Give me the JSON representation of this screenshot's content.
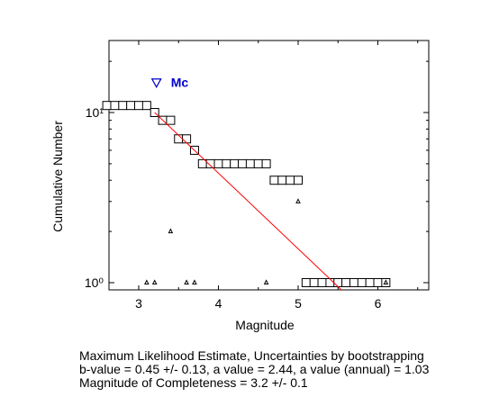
{
  "chart_data": {
    "type": "scatter",
    "xlabel": "Magnitude",
    "ylabel": "Cumulative Number",
    "xlim": [
      2.6,
      6.6
    ],
    "ylim": [
      0.9,
      25
    ],
    "yscale": "log",
    "xticks": [
      3,
      4,
      5,
      6
    ],
    "yticks": [
      {
        "value": 1,
        "label": "10⁰"
      },
      {
        "value": 10,
        "label": "10¹"
      }
    ],
    "grid": false,
    "series": [
      {
        "marker": "square",
        "x": [
          2.6,
          2.7,
          2.8,
          2.9,
          3.0,
          3.1,
          3.2,
          3.3,
          3.4,
          3.5,
          3.6,
          3.7,
          3.8,
          3.9,
          4.0,
          4.1,
          4.2,
          4.3,
          4.4,
          4.5,
          4.6,
          4.7,
          4.8,
          4.9,
          5.0,
          5.1,
          5.2,
          5.3,
          5.4,
          5.5,
          5.6,
          5.7,
          5.8,
          5.9,
          6.0,
          6.1
        ],
        "y": [
          11,
          11,
          11,
          11,
          11,
          11,
          10,
          9,
          9,
          7,
          7,
          6,
          5,
          5,
          5,
          5,
          5,
          5,
          5,
          5,
          5,
          4,
          4,
          4,
          4,
          1,
          1,
          1,
          1,
          1,
          1,
          1,
          1,
          1,
          1,
          1
        ]
      },
      {
        "marker": "triangle",
        "x": [
          3.1,
          3.2,
          3.4,
          3.6,
          3.7,
          4.6,
          5.0,
          6.1
        ],
        "y": [
          1,
          1,
          2,
          1,
          1,
          1,
          3,
          1
        ]
      }
    ],
    "fit_line": {
      "x": [
        3.2,
        5.55
      ],
      "y": [
        10,
        0.9
      ],
      "color": "#ff0000"
    },
    "mc_marker": {
      "x": 3.2,
      "y": 15,
      "label": "Mc",
      "color": "#0000cc"
    }
  },
  "caption": {
    "line1": "Maximum Likelihood Estimate, Uncertainties by bootstrapping",
    "line2": "b-value = 0.45 +/- 0.13,  a value = 2.44,  a value (annual) = 1.03",
    "line3": "Magnitude of Completeness = 3.2 +/- 0.1"
  }
}
